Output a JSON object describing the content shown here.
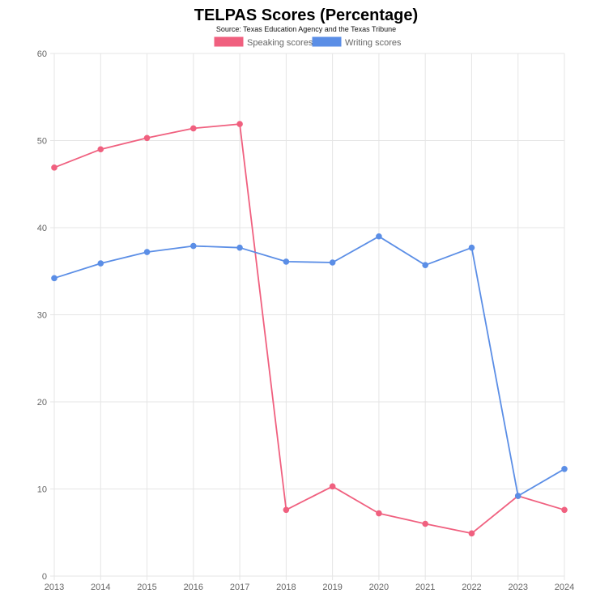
{
  "chart_data": {
    "type": "line",
    "title": "TELPAS Scores (Percentage)",
    "subtitle": "Source: Texas Education Agency and the Texas Tribune",
    "xlabel": "",
    "ylabel": "",
    "categories": [
      "2013",
      "2014",
      "2015",
      "2016",
      "2017",
      "2018",
      "2019",
      "2020",
      "2021",
      "2022",
      "2023",
      "2024"
    ],
    "ylim": [
      0,
      60
    ],
    "yticks": [
      "0",
      "10",
      "20",
      "30",
      "40",
      "50",
      "60"
    ],
    "grid": true,
    "legend_position": "top",
    "series": [
      {
        "name": "Speaking scores",
        "color": "#f0607f",
        "values": [
          46.9,
          49.0,
          50.3,
          51.4,
          51.9,
          7.6,
          10.3,
          7.2,
          6.0,
          4.9,
          9.2,
          7.6
        ]
      },
      {
        "name": "Writing scores",
        "color": "#5b8ee6",
        "values": [
          34.2,
          35.9,
          37.2,
          37.9,
          37.7,
          36.1,
          36.0,
          39.0,
          35.7,
          37.7,
          9.2,
          12.3
        ]
      }
    ]
  }
}
